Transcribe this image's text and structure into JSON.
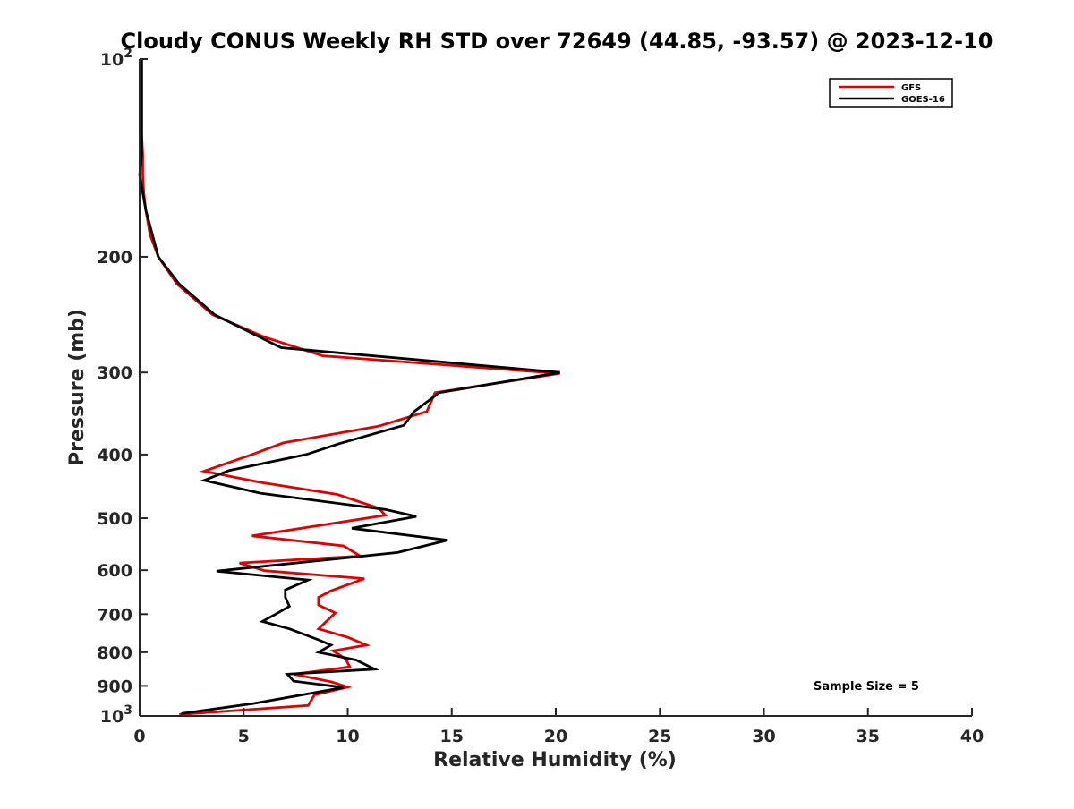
{
  "chart_data": {
    "type": "line",
    "title": "Cloudy CONUS Weekly RH STD over 72649 (44.85, -93.57) @ 2023-12-10",
    "xlabel": "Relative Humidity (%)",
    "ylabel": "Pressure (mb)",
    "xlim": [
      0,
      40
    ],
    "ylim": [
      1000,
      100
    ],
    "y_scale": "log-reversed",
    "x_ticks": [
      "0",
      "5",
      "10",
      "15",
      "20",
      "25",
      "30",
      "35",
      "40"
    ],
    "y_ticks": [
      {
        "value": 100,
        "base": "10",
        "exp": "2"
      },
      {
        "value": 200,
        "label": "200"
      },
      {
        "value": 300,
        "label": "300"
      },
      {
        "value": 400,
        "label": "400"
      },
      {
        "value": 500,
        "label": "500"
      },
      {
        "value": 600,
        "label": "600"
      },
      {
        "value": 700,
        "label": "700"
      },
      {
        "value": 800,
        "label": "800"
      },
      {
        "value": 900,
        "label": "900"
      },
      {
        "value": 1000,
        "base": "10",
        "exp": "3"
      }
    ],
    "legend_position": "top-right",
    "grid": false,
    "annotation": "Sample Size = 5",
    "series": [
      {
        "name": "GFS",
        "color": "#e00000",
        "points": [
          [
            0.1,
            100
          ],
          [
            0.1,
            110
          ],
          [
            0.1,
            120
          ],
          [
            0.1,
            130
          ],
          [
            0.15,
            140
          ],
          [
            0.15,
            150
          ],
          [
            0.2,
            160
          ],
          [
            0.3,
            170
          ],
          [
            0.5,
            185
          ],
          [
            0.9,
            200
          ],
          [
            1.8,
            220
          ],
          [
            3.5,
            245
          ],
          [
            6,
            265
          ],
          [
            8.8,
            283
          ],
          [
            20.2,
            301
          ],
          [
            14.2,
            322
          ],
          [
            13.8,
            344
          ],
          [
            11.5,
            362
          ],
          [
            6.9,
            384
          ],
          [
            5.5,
            399
          ],
          [
            3.1,
            424
          ],
          [
            5.8,
            441
          ],
          [
            9.5,
            460
          ],
          [
            11.5,
            483
          ],
          [
            11.8,
            495
          ],
          [
            5.4,
            532
          ],
          [
            9.8,
            551
          ],
          [
            10.6,
            571
          ],
          [
            4.8,
            585
          ],
          [
            6,
            601
          ],
          [
            10.8,
            618
          ],
          [
            9.2,
            645
          ],
          [
            8.6,
            660
          ],
          [
            8.6,
            678
          ],
          [
            9.4,
            697
          ],
          [
            8.6,
            737
          ],
          [
            10,
            759
          ],
          [
            10.9,
            780
          ],
          [
            9.3,
            796
          ],
          [
            9.9,
            819
          ],
          [
            10.1,
            842
          ],
          [
            7.4,
            864
          ],
          [
            9.2,
            887
          ],
          [
            10,
            904
          ],
          [
            8.4,
            929
          ],
          [
            8.1,
            964
          ],
          [
            1.9,
            995
          ]
        ]
      },
      {
        "name": "GOES-16",
        "color": "#000000",
        "points": [
          [
            0.1,
            100
          ],
          [
            0.1,
            110
          ],
          [
            0.1,
            120
          ],
          [
            0.1,
            130
          ],
          [
            0.1,
            140
          ],
          [
            0,
            150
          ],
          [
            0.3,
            170
          ],
          [
            0.9,
            200
          ],
          [
            1.9,
            220
          ],
          [
            3.6,
            245
          ],
          [
            6.8,
            275
          ],
          [
            20.2,
            300
          ],
          [
            14.4,
            322
          ],
          [
            13.2,
            344
          ],
          [
            12.7,
            361
          ],
          [
            9.6,
            385
          ],
          [
            8,
            400
          ],
          [
            4.3,
            423
          ],
          [
            3.1,
            438
          ],
          [
            5.8,
            458
          ],
          [
            11.8,
            485
          ],
          [
            13.3,
            497
          ],
          [
            10.2,
            518
          ],
          [
            14.8,
            540
          ],
          [
            12.4,
            564
          ],
          [
            3.7,
            602
          ],
          [
            8.1,
            621
          ],
          [
            7,
            643
          ],
          [
            7,
            660
          ],
          [
            7.2,
            681
          ],
          [
            6.5,
            701
          ],
          [
            5.9,
            718
          ],
          [
            7.2,
            737
          ],
          [
            8.6,
            766
          ],
          [
            9.2,
            780
          ],
          [
            8.6,
            800
          ],
          [
            10.4,
            822
          ],
          [
            11.3,
            849
          ],
          [
            7.1,
            864
          ],
          [
            7.4,
            885
          ],
          [
            9.8,
            905
          ],
          [
            5.5,
            957
          ],
          [
            2,
            992
          ]
        ]
      }
    ]
  }
}
